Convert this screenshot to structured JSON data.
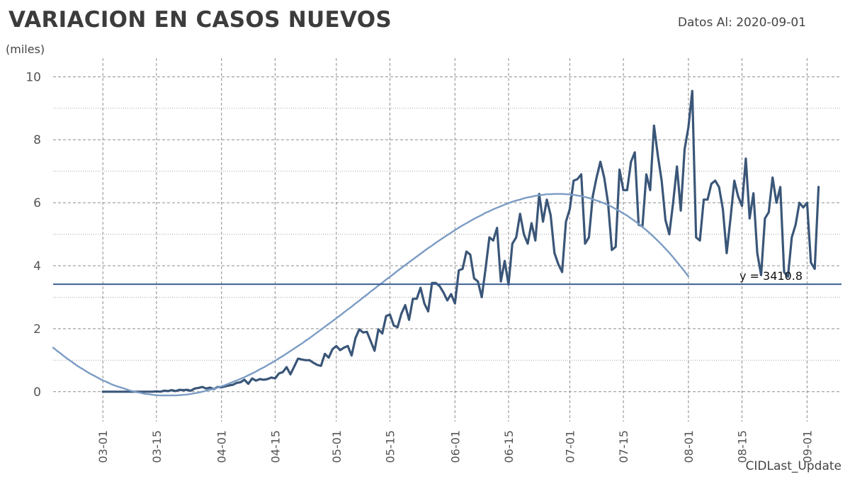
{
  "header": {
    "title": "VARIACION EN CASOS NUEVOS",
    "date_label": "Datos Al: 2020-09-01",
    "unit_label": "(miles)",
    "footer": "CIDLast_Update"
  },
  "chart_data": {
    "type": "line",
    "title": "VARIACION EN CASOS NUEVOS",
    "ylabel": "(miles)",
    "ylim": [
      -0.95,
      10.3
    ],
    "xlim": [
      "2020-02-17",
      "2020-09-10"
    ],
    "y_ticks": [
      0,
      2,
      4,
      6,
      8,
      10
    ],
    "x_ticks": [
      "03-01",
      "03-15",
      "04-01",
      "04-15",
      "05-01",
      "05-15",
      "06-01",
      "06-15",
      "07-01",
      "07-15",
      "08-01",
      "08-15",
      "09-01"
    ],
    "x_tick_dates": [
      "2020-03-01",
      "2020-03-15",
      "2020-04-01",
      "2020-04-15",
      "2020-05-01",
      "2020-05-15",
      "2020-06-01",
      "2020-06-15",
      "2020-07-01",
      "2020-07-15",
      "2020-08-01",
      "2020-08-15",
      "2020-09-01"
    ],
    "grid": true,
    "colors": {
      "daily": "#3a5678",
      "trend": "#7b9cc4",
      "mean_line": "#3d5f93"
    },
    "series": [
      {
        "role": "daily",
        "x_start": "2020-03-01",
        "step_days": 1,
        "values": [
          0,
          0,
          0,
          0,
          0,
          0,
          0,
          0,
          0,
          0,
          0,
          0,
          0,
          0,
          0.01,
          0,
          0.03,
          0.02,
          0.05,
          0.02,
          0.06,
          0.05,
          0.06,
          0.03,
          0.1,
          0.12,
          0.15,
          0.1,
          0.13,
          0.08,
          0.15,
          0.14,
          0.17,
          0.2,
          0.22,
          0.28,
          0.3,
          0.38,
          0.25,
          0.42,
          0.35,
          0.4,
          0.38,
          0.4,
          0.45,
          0.42,
          0.58,
          0.62,
          0.78,
          0.55,
          0.8,
          1.05,
          1.02,
          1.0,
          1.0,
          0.92,
          0.85,
          0.82,
          1.2,
          1.08,
          1.35,
          1.45,
          1.32,
          1.4,
          1.45,
          1.15,
          1.7,
          1.98,
          1.88,
          1.9,
          1.6,
          1.3,
          1.98,
          1.85,
          2.4,
          2.45,
          2.1,
          2.05,
          2.48,
          2.75,
          2.28,
          2.95,
          2.95,
          3.3,
          2.8,
          2.55,
          3.45,
          3.45,
          3.35,
          3.15,
          2.9,
          3.1,
          2.8,
          3.85,
          3.9,
          4.45,
          4.35,
          3.6,
          3.5,
          3.0,
          3.9,
          4.9,
          4.8,
          5.2,
          3.5,
          4.15,
          3.4,
          4.7,
          4.9,
          5.65,
          5.0,
          4.7,
          5.35,
          4.8,
          6.28,
          5.4,
          6.1,
          5.6,
          4.4,
          4.05,
          3.8,
          5.4,
          5.8,
          6.7,
          6.75,
          6.9,
          4.7,
          4.9,
          6.2,
          6.8,
          7.3,
          6.8,
          6.0,
          4.5,
          4.6,
          7.05,
          6.4,
          6.4,
          7.3,
          7.6,
          5.3,
          5.25,
          6.9,
          6.4,
          8.45,
          7.5,
          6.7,
          5.45,
          5.0,
          6.0,
          7.15,
          5.75,
          7.7,
          8.4,
          9.55,
          4.9,
          4.8,
          6.1,
          6.1,
          6.6,
          6.7,
          6.5,
          5.8,
          4.4,
          5.5,
          6.7,
          6.2,
          5.9,
          7.4,
          5.5,
          6.3,
          4.4,
          3.7,
          5.5,
          5.7,
          6.8,
          6.0,
          6.5,
          3.8,
          3.65,
          4.9,
          5.3,
          6.0,
          5.85,
          6.0,
          4.1,
          3.9,
          6.5
        ]
      },
      {
        "role": "trend",
        "x_start": "2020-02-17",
        "step_days": 1,
        "values": [
          1.4,
          1.3,
          1.21,
          1.11,
          1.02,
          0.94,
          0.85,
          0.77,
          0.7,
          0.62,
          0.55,
          0.49,
          0.42,
          0.36,
          0.31,
          0.25,
          0.2,
          0.16,
          0.12,
          0.08,
          0.04,
          0.01,
          -0.02,
          -0.04,
          -0.07,
          -0.08,
          -0.1,
          -0.11,
          -0.12,
          -0.12,
          -0.12,
          -0.12,
          -0.12,
          -0.11,
          -0.1,
          -0.09,
          -0.07,
          -0.05,
          -0.03,
          0.0,
          0.03,
          0.06,
          0.09,
          0.13,
          0.17,
          0.21,
          0.26,
          0.31,
          0.36,
          0.41,
          0.46,
          0.52,
          0.58,
          0.64,
          0.71,
          0.77,
          0.84,
          0.91,
          0.98,
          1.06,
          1.13,
          1.21,
          1.29,
          1.37,
          1.45,
          1.53,
          1.62,
          1.7,
          1.79,
          1.88,
          1.97,
          2.06,
          2.15,
          2.24,
          2.33,
          2.42,
          2.52,
          2.61,
          2.7,
          2.8,
          2.89,
          2.99,
          3.08,
          3.18,
          3.27,
          3.37,
          3.46,
          3.56,
          3.65,
          3.74,
          3.84,
          3.93,
          4.02,
          4.11,
          4.2,
          4.29,
          4.38,
          4.47,
          4.56,
          4.64,
          4.73,
          4.81,
          4.89,
          4.97,
          5.05,
          5.13,
          5.21,
          5.28,
          5.35,
          5.42,
          5.49,
          5.55,
          5.61,
          5.68,
          5.73,
          5.79,
          5.84,
          5.89,
          5.94,
          5.99,
          6.03,
          6.07,
          6.1,
          6.14,
          6.17,
          6.19,
          6.22,
          6.24,
          6.25,
          6.27,
          6.27,
          6.28,
          6.28,
          6.28,
          6.27,
          6.26,
          6.25,
          6.23,
          6.21,
          6.18,
          6.15,
          6.11,
          6.07,
          6.03,
          5.98,
          5.93,
          5.87,
          5.8,
          5.74,
          5.66,
          5.59,
          5.5,
          5.42,
          5.33,
          5.23,
          5.13,
          5.02,
          4.91,
          4.79,
          4.67,
          4.54,
          4.41,
          4.27,
          4.12,
          3.97,
          3.82,
          3.66
        ]
      }
    ],
    "annotations": [
      {
        "type": "hline",
        "y": 3.4108,
        "label": "y = 3410.8"
      }
    ]
  }
}
